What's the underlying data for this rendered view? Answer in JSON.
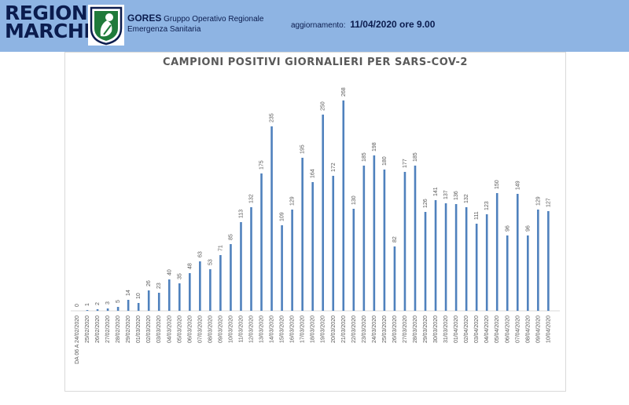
{
  "header": {
    "logo_line1": "REGIONE",
    "logo_line2": "MARCHE",
    "gores_title": "GORES",
    "gores_subtitle1": "Gruppo Operativo Regionale",
    "gores_subtitle2": "Emergenza Sanitaria",
    "update_label": "aggiornamento:",
    "update_date": "11/04/2020 ore 9.00",
    "background_color": "#8eb4e3",
    "text_color": "#0b1c4e"
  },
  "chart_data": {
    "type": "bar",
    "title": "CAMPIONI POSITIVI GIORNALIERI PER SARS-COV-2",
    "xlabel": "",
    "ylabel": "",
    "ylim": [
      0,
      300
    ],
    "bar_color": "#4f81bd",
    "grid": false,
    "legend": "none",
    "categories": [
      "DA 06 A 24/02/2020",
      "25/02/2020",
      "26/02/2020",
      "27/02/2020",
      "28/02/2020",
      "29/02/2020",
      "01/03/2020",
      "02/03/2020",
      "03/03/2020",
      "04/03/2020",
      "05/03/2020",
      "06/03/2020",
      "07/03/2020",
      "08/03/2020",
      "09/03/2020",
      "10/03/2020",
      "11/03/2020",
      "12/03/2020",
      "13/03/2020",
      "14/03/2020",
      "15/03/2020",
      "16/03/2020",
      "17/03/2020",
      "18/03/2020",
      "19/03/2020",
      "20/03/2020",
      "21/03/2020",
      "22/03/2020",
      "23/03/2020",
      "24/03/2020",
      "25/03/2020",
      "26/03/2020",
      "27/03/2020",
      "28/03/2020",
      "29/03/2020",
      "30/03/2020",
      "31/03/2020",
      "01/04/2020",
      "02/04/2020",
      "03/04/2020",
      "04/04/2020",
      "05/04/2020",
      "06/04/2020",
      "07/04/2020",
      "08/04/2020",
      "09/04/2020",
      "10/04/2020"
    ],
    "values": [
      0,
      1,
      2,
      3,
      5,
      14,
      10,
      26,
      23,
      40,
      35,
      48,
      63,
      53,
      71,
      85,
      113,
      132,
      175,
      235,
      109,
      129,
      195,
      164,
      250,
      172,
      268,
      130,
      185,
      198,
      180,
      82,
      177,
      185,
      126,
      141,
      137,
      136,
      132,
      111,
      123,
      150,
      96,
      149,
      96,
      129,
      127
    ]
  }
}
